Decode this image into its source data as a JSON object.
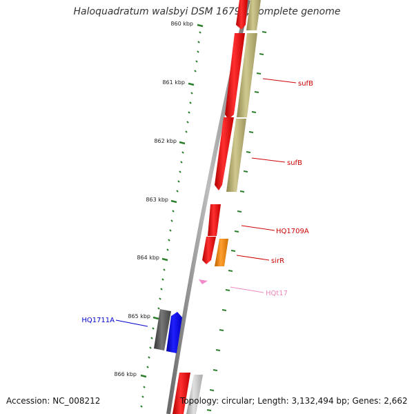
{
  "title": "Haloquadratum walsbyi DSM 16790, complete genome",
  "footer": {
    "accession": "Accession: NC_008212",
    "summary": "Topology: circular; Length: 3,132,494 bp; Genes: 2,662"
  },
  "colors": {
    "backbone": "#8a8a8a",
    "tick": "#2a7d2a",
    "red_gene": "#ee1111",
    "olive_gene": "#b8b070",
    "orange_gene": "#f08a10",
    "blue_gene": "#0000ee",
    "gray_gene": "#555555",
    "light_gray_gene": "#c0c0c0",
    "pink_rna": "#f08ac8",
    "label_red": "#cc0000",
    "label_blue": "#0000cc",
    "label_pink": "#ee88bb"
  },
  "ticks": [
    "860 kbp",
    "861 kbp",
    "862 kbp",
    "863 kbp",
    "864 kbp",
    "865 kbp",
    "866 kbp"
  ],
  "gene_labels": [
    {
      "text": "sufB",
      "color": "#cc0000"
    },
    {
      "text": "sufB",
      "color": "#cc0000"
    },
    {
      "text": "HQ1709A",
      "color": "#cc0000"
    },
    {
      "text": "sirR",
      "color": "#cc0000"
    },
    {
      "text": "HQt17",
      "color": "#ee88bb"
    },
    {
      "text": "HQ1711A",
      "color": "#0000cc"
    }
  ]
}
